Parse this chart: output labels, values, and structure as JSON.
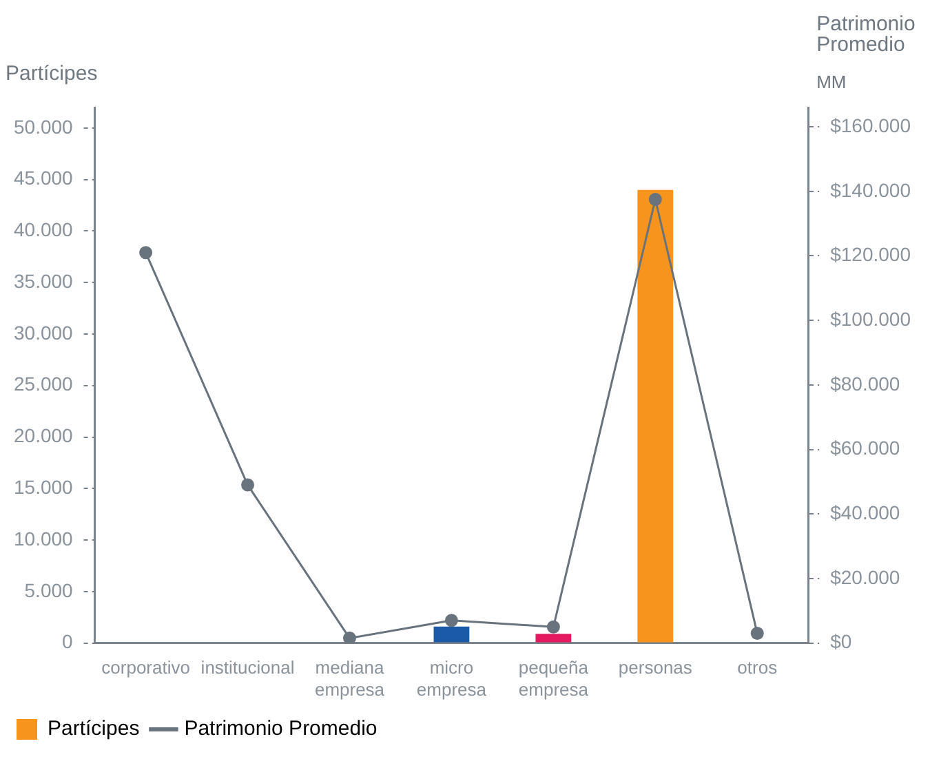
{
  "chart_data": {
    "type": "bar",
    "ylabel": "Partícipes",
    "y2label": "Patrimonio Promedio",
    "annotations": [
      "MM"
    ],
    "categories": [
      "corporativo",
      "institucional",
      "mediana empresa",
      "micro empresa",
      "pequeña empresa",
      "personas",
      "otros"
    ],
    "series": [
      {
        "name": "Partícipes",
        "color": "#f7941d",
        "colors": [
          "#f7941d",
          "#f7941d",
          "#f7941d",
          "#1a5aa6",
          "#e5195f",
          "#f7941d",
          "#f7941d"
        ],
        "values": [
          0,
          0,
          0,
          1600,
          900,
          44000,
          0
        ]
      },
      {
        "name": "Patrimonio Promedio",
        "type": "line",
        "axis": "y2",
        "color": "#68737d",
        "values": [
          121000,
          49000,
          1500,
          7000,
          5000,
          137500,
          3000
        ]
      }
    ],
    "ylim": [
      0,
      52000
    ],
    "yticks": [
      {
        "value": 0,
        "label": "0"
      },
      {
        "value": 5000,
        "label": "5.000"
      },
      {
        "value": 10000,
        "label": "10.000"
      },
      {
        "value": 15000,
        "label": "15.000"
      },
      {
        "value": 20000,
        "label": "20.000"
      },
      {
        "value": 25000,
        "label": "25.000"
      },
      {
        "value": 30000,
        "label": "30.000"
      },
      {
        "value": 35000,
        "label": "35.000"
      },
      {
        "value": 40000,
        "label": "40.000"
      },
      {
        "value": 45000,
        "label": "45.000"
      },
      {
        "value": 50000,
        "label": "50.000"
      }
    ],
    "y2lim": [
      0,
      166000
    ],
    "y2ticks": [
      {
        "value": 0,
        "label": "$0"
      },
      {
        "value": 20000,
        "label": "$20.000"
      },
      {
        "value": 40000,
        "label": "$40.000"
      },
      {
        "value": 60000,
        "label": "$60.000"
      },
      {
        "value": 80000,
        "label": "$80.000"
      },
      {
        "value": 100000,
        "label": "$100.000"
      },
      {
        "value": 120000,
        "label": "$120.000"
      },
      {
        "value": 140000,
        "label": "$140.000"
      },
      {
        "value": 160000,
        "label": "$160.000"
      }
    ],
    "legend": "bottom left",
    "marker": "circle",
    "line_style": "solid",
    "grid": false
  }
}
